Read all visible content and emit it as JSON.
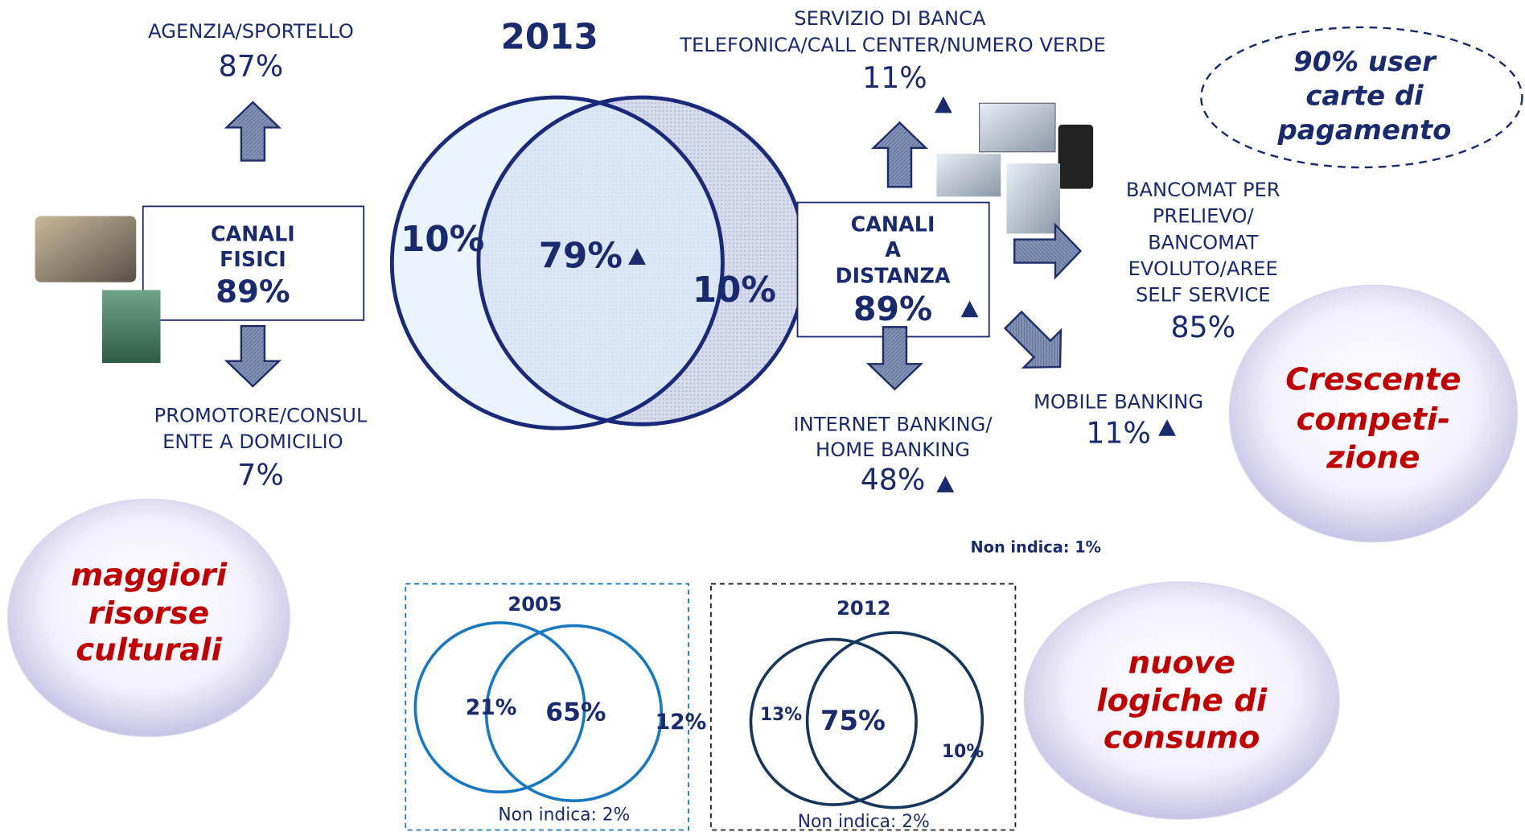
{
  "title": "2013",
  "fisici": {
    "label": [
      "CANALI",
      "FISICI"
    ],
    "value": "89%"
  },
  "agenzia": {
    "label": "AGENZIA/SPORTELLO",
    "value": "87%"
  },
  "promotore": {
    "label": [
      "PROMOTORE/CONSUL",
      "ENTE A DOMICILIO"
    ],
    "value": "7%"
  },
  "venn2013": {
    "left": "10%",
    "center": "79%",
    "right": "10%"
  },
  "distanza": {
    "label": [
      "CANALI",
      "A",
      "DISTANZA"
    ],
    "value": "89%"
  },
  "telefonica": {
    "label": [
      "SERVIZIO DI BANCA",
      "TELEFONICA/CALL CENTER/NUMERO VERDE"
    ],
    "value": "11%"
  },
  "bancomat": {
    "label": [
      "BANCOMAT PER",
      "PRELIEVO/",
      "BANCOMAT",
      "EVOLUTO/AREE",
      "SELF SERVICE"
    ],
    "value": "85%"
  },
  "mobile": {
    "label": "MOBILE BANKING",
    "value": "11%"
  },
  "internet": {
    "label": [
      "INTERNET BANKING/",
      "HOME BANKING"
    ],
    "value": "48%"
  },
  "non_indica_2013": "Non indica: 1%",
  "user_note": [
    "90% user",
    "carte di",
    "pagamento"
  ],
  "bubbles": [
    [
      "Crescente",
      "competi-",
      "zione"
    ],
    [
      "maggiori",
      "risorse",
      "culturali"
    ],
    [
      "nuove",
      "logiche di",
      "consumo"
    ]
  ],
  "venn2005": {
    "title": "2005",
    "left": "21%",
    "center": "65%",
    "right": "12%",
    "non_indica": "Non indica: 2%"
  },
  "venn2012": {
    "title": "2012",
    "left": "13%",
    "center": "75%",
    "right": "10%",
    "non_indica": "Non indica: 2%"
  }
}
